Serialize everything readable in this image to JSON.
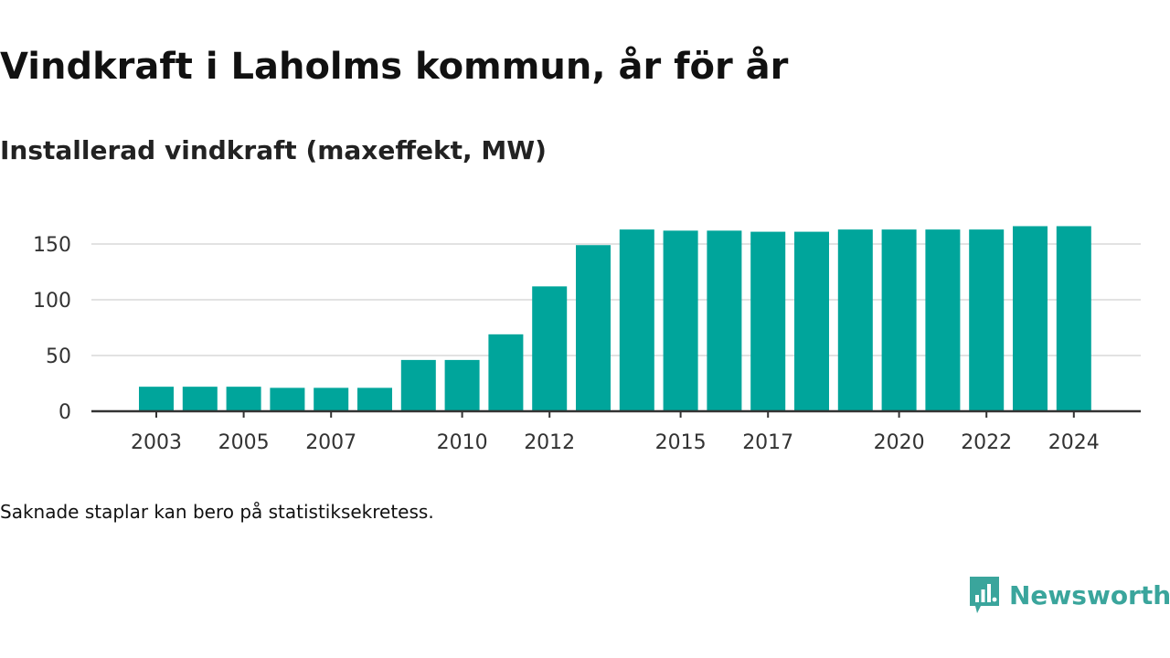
{
  "colors": {
    "bar": "#00a59b",
    "grid": "#d9d9d9",
    "axis": "#333333",
    "brand": "#3aa59c"
  },
  "brand": {
    "name": "Newsworthy",
    "icon": "newsworthy-logo-icon"
  },
  "footnote": "Saknade staplar kan bero på statistiksekretess.",
  "chart_data": {
    "type": "bar",
    "title": "Vindkraft i Laholms kommun, år för år",
    "subtitle": "Installerad vindkraft (maxeffekt, MW)",
    "xlabel": "",
    "ylabel": "",
    "categories": [
      "2003",
      "2004",
      "2005",
      "2006",
      "2007",
      "2008",
      "2009",
      "2010",
      "2011",
      "2012",
      "2013",
      "2014",
      "2015",
      "2016",
      "2017",
      "2018",
      "2019",
      "2020",
      "2021",
      "2022",
      "2023",
      "2024"
    ],
    "values": [
      22,
      22,
      22,
      21,
      21,
      21,
      46,
      46,
      69,
      112,
      149,
      163,
      162,
      162,
      161,
      161,
      163,
      163,
      163,
      163,
      166,
      166
    ],
    "x_tick_labels": [
      "2003",
      "2005",
      "2007",
      "2010",
      "2012",
      "2015",
      "2017",
      "2020",
      "2022",
      "2024"
    ],
    "y_ticks": [
      0,
      50,
      100,
      150
    ],
    "ylim": [
      0,
      175
    ],
    "grid": true,
    "legend": "none"
  }
}
